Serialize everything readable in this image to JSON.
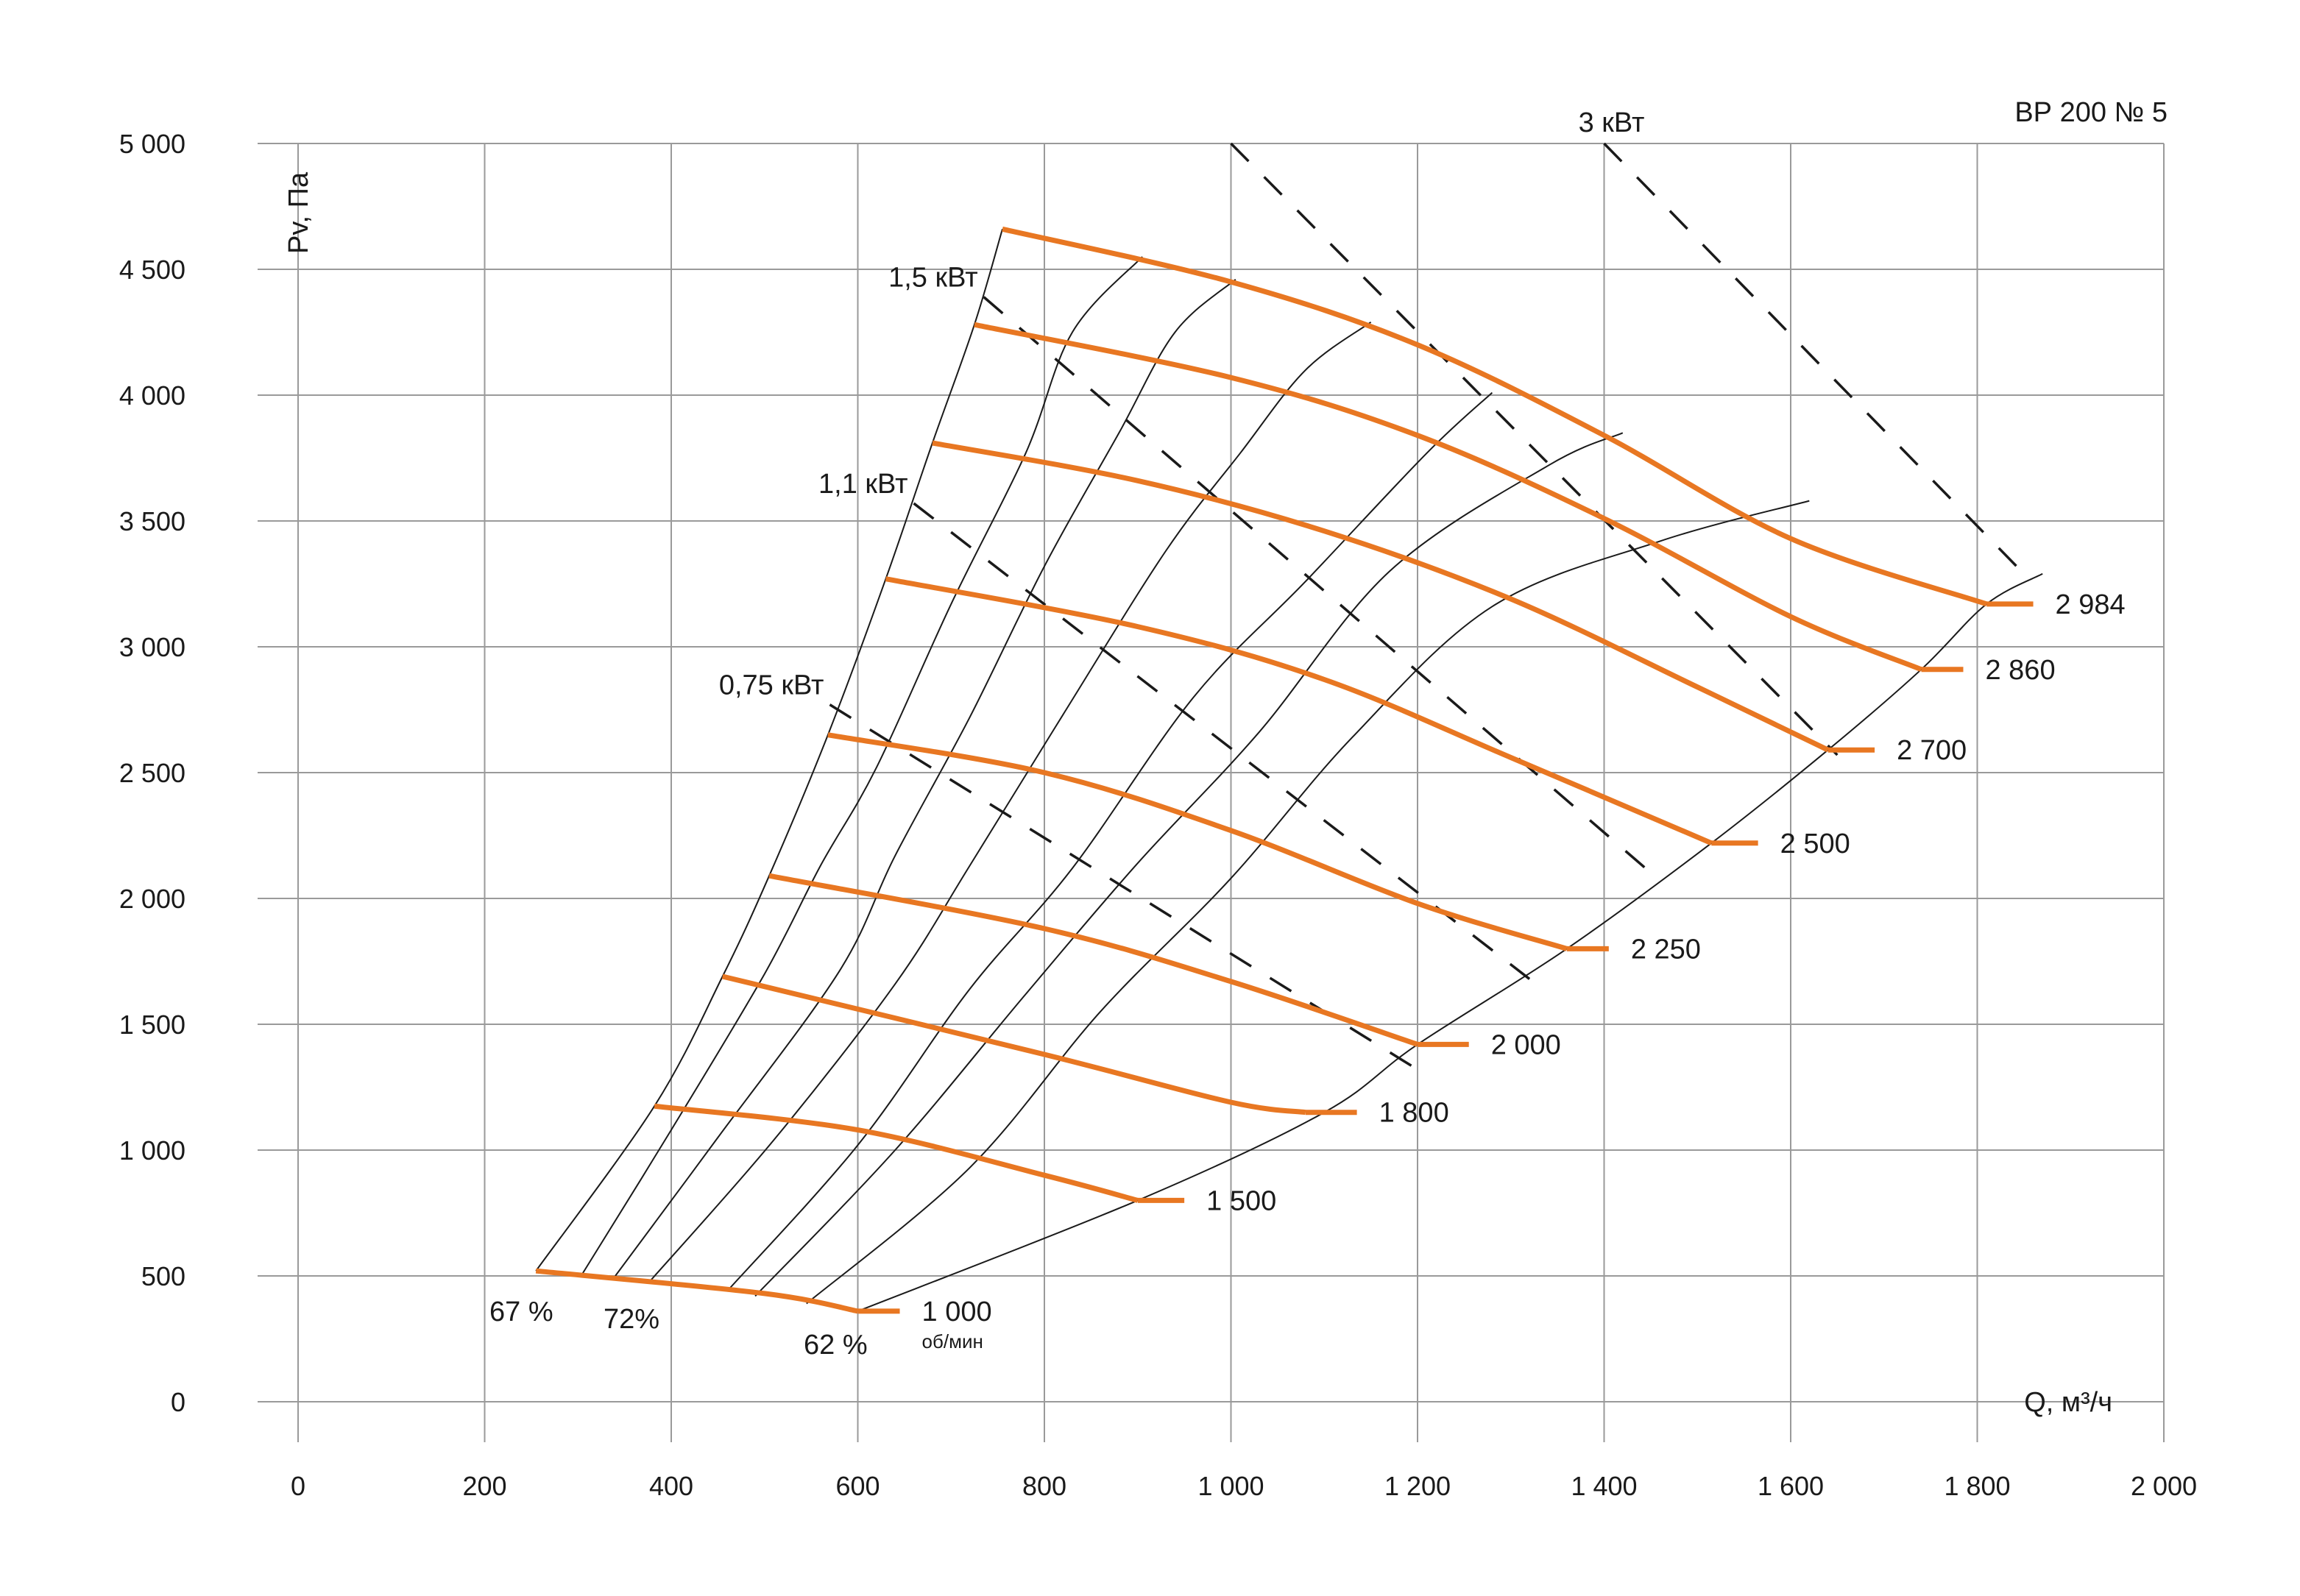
{
  "chart_data": {
    "type": "line",
    "title": "ВР  200 № 5",
    "xlabel": "Q, м³/ч",
    "ylabel": "Pv, Па",
    "xlim": [
      0,
      2000
    ],
    "ylim": [
      0,
      5000
    ],
    "xticks": [
      0,
      200,
      400,
      600,
      800,
      1000,
      1200,
      1400,
      1600,
      1800,
      2000
    ],
    "xtick_labels": [
      "0",
      "200",
      "400",
      "600",
      "800",
      "1 000",
      "1 200",
      "1 400",
      "1 600",
      "1 800",
      "2 000"
    ],
    "yticks": [
      0,
      500,
      1000,
      1500,
      2000,
      2500,
      3000,
      3500,
      4000,
      4500,
      5000
    ],
    "ytick_labels": [
      "0",
      "500",
      "1 000",
      "1 500",
      "2 000",
      "2 500",
      "3 000",
      "3 500",
      "4 000",
      "4 500",
      "5 000"
    ],
    "grid": true,
    "accent_color": "#e87722",
    "speed_unit": "об/мин",
    "series": [
      {
        "name": "1 000",
        "points": [
          [
            255,
            520
          ],
          [
            500,
            430
          ],
          [
            600,
            360
          ],
          [
            645,
            360
          ]
        ]
      },
      {
        "name": "1 500",
        "points": [
          [
            382,
            1175
          ],
          [
            600,
            1080
          ],
          [
            800,
            900
          ],
          [
            900,
            800
          ],
          [
            950,
            800
          ]
        ]
      },
      {
        "name": "1 800",
        "points": [
          [
            455,
            1690
          ],
          [
            800,
            1380
          ],
          [
            1000,
            1190
          ],
          [
            1080,
            1150
          ],
          [
            1135,
            1150
          ]
        ]
      },
      {
        "name": "2 000",
        "points": [
          [
            505,
            2090
          ],
          [
            800,
            1880
          ],
          [
            1000,
            1670
          ],
          [
            1200,
            1420
          ],
          [
            1255,
            1420
          ]
        ]
      },
      {
        "name": "2 250",
        "points": [
          [
            568,
            2650
          ],
          [
            800,
            2500
          ],
          [
            1000,
            2270
          ],
          [
            1200,
            1980
          ],
          [
            1360,
            1800
          ],
          [
            1405,
            1800
          ]
        ]
      },
      {
        "name": "2 500",
        "points": [
          [
            630,
            3270
          ],
          [
            900,
            3080
          ],
          [
            1100,
            2870
          ],
          [
            1300,
            2560
          ],
          [
            1515,
            2220
          ],
          [
            1565,
            2220
          ]
        ]
      },
      {
        "name": "2 700",
        "points": [
          [
            680,
            3810
          ],
          [
            900,
            3660
          ],
          [
            1100,
            3460
          ],
          [
            1300,
            3190
          ],
          [
            1500,
            2840
          ],
          [
            1640,
            2590
          ],
          [
            1690,
            2590
          ]
        ]
      },
      {
        "name": "2 860",
        "points": [
          [
            725,
            4280
          ],
          [
            1000,
            4070
          ],
          [
            1200,
            3840
          ],
          [
            1400,
            3510
          ],
          [
            1600,
            3120
          ],
          [
            1740,
            2910
          ],
          [
            1785,
            2910
          ]
        ]
      },
      {
        "name": "2 984",
        "points": [
          [
            755,
            4660
          ],
          [
            1000,
            4450
          ],
          [
            1200,
            4200
          ],
          [
            1400,
            3840
          ],
          [
            1600,
            3430
          ],
          [
            1810,
            3170
          ],
          [
            1860,
            3170
          ]
        ]
      }
    ],
    "efficiency_labels": [
      "67 %",
      "72%",
      "62 %"
    ],
    "efficiency_lines": [
      {
        "points": [
          [
            255,
            520
          ],
          [
            382,
            1175
          ],
          [
            455,
            1690
          ],
          [
            505,
            2090
          ],
          [
            568,
            2650
          ],
          [
            630,
            3270
          ],
          [
            680,
            3810
          ],
          [
            725,
            4280
          ],
          [
            755,
            4660
          ]
        ]
      },
      {
        "points": [
          [
            305,
            510
          ],
          [
            400,
            1080
          ],
          [
            500,
            1700
          ],
          [
            560,
            2130
          ],
          [
            620,
            2520
          ],
          [
            700,
            3170
          ],
          [
            780,
            3770
          ],
          [
            830,
            4250
          ],
          [
            905,
            4550
          ]
        ]
      },
      {
        "points": [
          [
            340,
            500
          ],
          [
            450,
            1050
          ],
          [
            580,
            1710
          ],
          [
            640,
            2170
          ],
          [
            720,
            2720
          ],
          [
            800,
            3320
          ],
          [
            880,
            3850
          ],
          [
            940,
            4250
          ],
          [
            1005,
            4460
          ]
        ]
      },
      {
        "points": [
          [
            375,
            470
          ],
          [
            510,
            1040
          ],
          [
            640,
            1660
          ],
          [
            720,
            2130
          ],
          [
            820,
            2730
          ],
          [
            930,
            3380
          ],
          [
            1010,
            3770
          ],
          [
            1080,
            4100
          ],
          [
            1150,
            4290
          ]
        ]
      },
      {
        "points": [
          [
            460,
            440
          ],
          [
            600,
            1020
          ],
          [
            720,
            1640
          ],
          [
            830,
            2120
          ],
          [
            960,
            2800
          ],
          [
            1080,
            3260
          ],
          [
            1210,
            3770
          ],
          [
            1280,
            4010
          ]
        ]
      },
      {
        "points": [
          [
            490,
            420
          ],
          [
            640,
            1000
          ],
          [
            780,
            1620
          ],
          [
            900,
            2140
          ],
          [
            1030,
            2660
          ],
          [
            1170,
            3300
          ],
          [
            1340,
            3720
          ],
          [
            1420,
            3850
          ]
        ]
      },
      {
        "points": [
          [
            545,
            390
          ],
          [
            720,
            930
          ],
          [
            860,
            1550
          ],
          [
            1000,
            2080
          ],
          [
            1130,
            2640
          ],
          [
            1280,
            3160
          ],
          [
            1460,
            3420
          ],
          [
            1620,
            3580
          ]
        ]
      },
      {
        "points": [
          [
            600,
            360
          ],
          [
            900,
            800
          ],
          [
            1100,
            1150
          ],
          [
            1200,
            1420
          ],
          [
            1360,
            1800
          ],
          [
            1515,
            2220
          ],
          [
            1640,
            2590
          ],
          [
            1740,
            2910
          ],
          [
            1810,
            3170
          ],
          [
            1870,
            3290
          ]
        ]
      }
    ],
    "power_lines": [
      {
        "name": "0,75 кВт",
        "points": [
          [
            570,
            2770
          ],
          [
            1200,
            1320
          ]
        ]
      },
      {
        "name": "1,1 кВт",
        "points": [
          [
            660,
            3570
          ],
          [
            1320,
            1680
          ]
        ]
      },
      {
        "name": "1,5 кВт",
        "points": [
          [
            735,
            4390
          ],
          [
            1460,
            2070
          ]
        ]
      },
      {
        "name": "",
        "points": [
          [
            1000,
            5000
          ],
          [
            1650,
            2570
          ]
        ]
      },
      {
        "name": "3 кВт",
        "points": [
          [
            1400,
            5000
          ],
          [
            1850,
            3290
          ]
        ]
      }
    ]
  }
}
